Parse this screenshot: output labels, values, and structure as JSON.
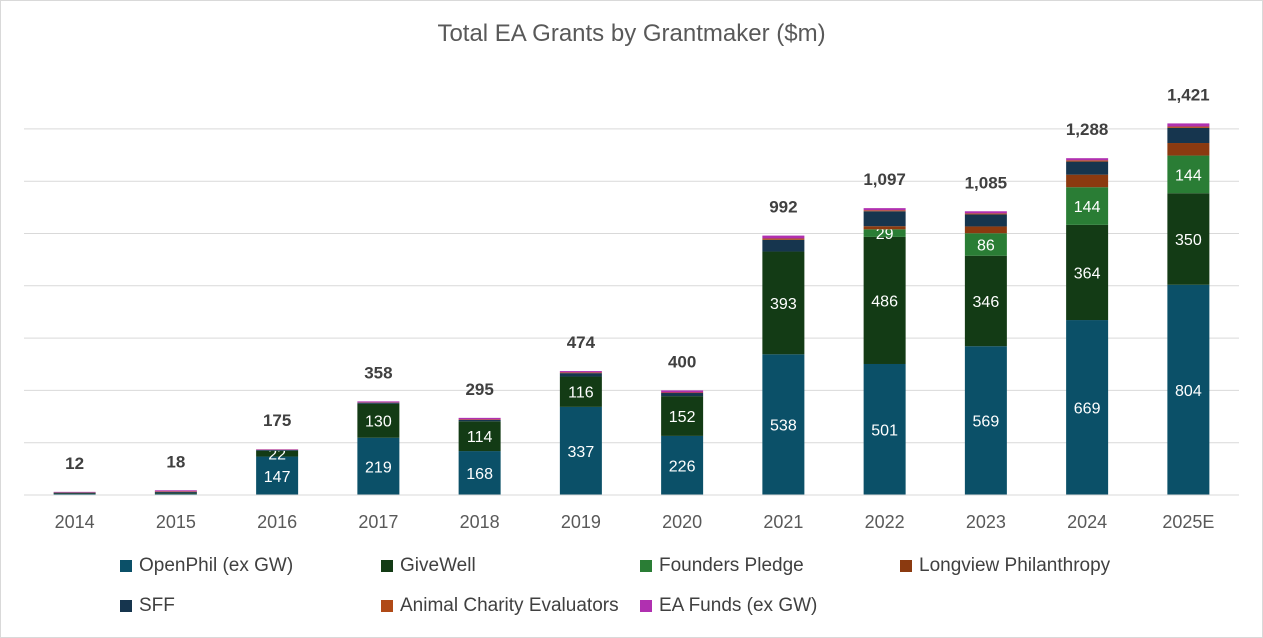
{
  "chart_data": {
    "type": "bar",
    "stacked": true,
    "title": "Total EA Grants by Grantmaker ($m)",
    "xlabel": "",
    "ylabel": "",
    "ylim": [
      0,
      1400
    ],
    "grid": true,
    "legend_position": "bottom",
    "categories": [
      "2014",
      "2015",
      "2016",
      "2017",
      "2018",
      "2019",
      "2020",
      "2021",
      "2022",
      "2023",
      "2024",
      "2025E"
    ],
    "totals": [
      12,
      18,
      175,
      358,
      295,
      474,
      400,
      992,
      1097,
      1085,
      1288,
      1421
    ],
    "total_labels": [
      "12",
      "18",
      "175",
      "358",
      "295",
      "474",
      "400",
      "992",
      "1,097",
      "1,085",
      "1,288",
      "1,421"
    ],
    "series": [
      {
        "name": "OpenPhil (ex GW)",
        "color": "#0b5068",
        "values": [
          4,
          5,
          147,
          219,
          168,
          337,
          226,
          538,
          501,
          569,
          669,
          804
        ],
        "labels": [
          "",
          "",
          "147",
          "219",
          "168",
          "337",
          "226",
          "538",
          "501",
          "569",
          "669",
          "804"
        ]
      },
      {
        "name": "GiveWell",
        "color": "#133b15",
        "values": [
          2,
          3,
          22,
          130,
          114,
          116,
          152,
          393,
          486,
          346,
          364,
          350
        ],
        "labels": [
          "",
          "",
          "22",
          "130",
          "114",
          "116",
          "152",
          "393",
          "486",
          "346",
          "364",
          "350"
        ]
      },
      {
        "name": "Founders Pledge",
        "color": "#2a7d35",
        "values": [
          0,
          0,
          0,
          0,
          0,
          0,
          0,
          0,
          29,
          86,
          144,
          144
        ],
        "labels": [
          "",
          "",
          "",
          "",
          "",
          "",
          "",
          "",
          "29",
          "86",
          "144",
          "144"
        ]
      },
      {
        "name": "Longview Philanthropy",
        "color": "#8b3a10",
        "values": [
          0,
          0,
          0,
          0,
          0,
          0,
          0,
          0,
          12,
          26,
          48,
          48
        ],
        "labels": [
          "",
          "",
          "",
          "",
          "",
          "",
          "",
          "",
          "",
          "",
          "",
          ""
        ]
      },
      {
        "name": "SFF",
        "color": "#16354e",
        "values": [
          3,
          4,
          3,
          4,
          5,
          13,
          12,
          45,
          57,
          46,
          50,
          58
        ],
        "labels": [
          "",
          "",
          "",
          "",
          "",
          "",
          "",
          "",
          "",
          "",
          "",
          ""
        ]
      },
      {
        "name": "Animal Charity Evaluators",
        "color": "#b04a17",
        "values": [
          1,
          2,
          1,
          1,
          2,
          3,
          2,
          5,
          4,
          4,
          5,
          5
        ],
        "labels": [
          "",
          "",
          "",
          "",
          "",
          "",
          "",
          "",
          "",
          "",
          "",
          ""
        ]
      },
      {
        "name": "EA Funds (ex GW)",
        "color": "#b030b0",
        "values": [
          2,
          4,
          2,
          4,
          6,
          5,
          8,
          11,
          8,
          8,
          8,
          12
        ],
        "labels": [
          "",
          "",
          "",
          "",
          "",
          "",
          "",
          "",
          "",
          "",
          "",
          ""
        ]
      }
    ]
  }
}
